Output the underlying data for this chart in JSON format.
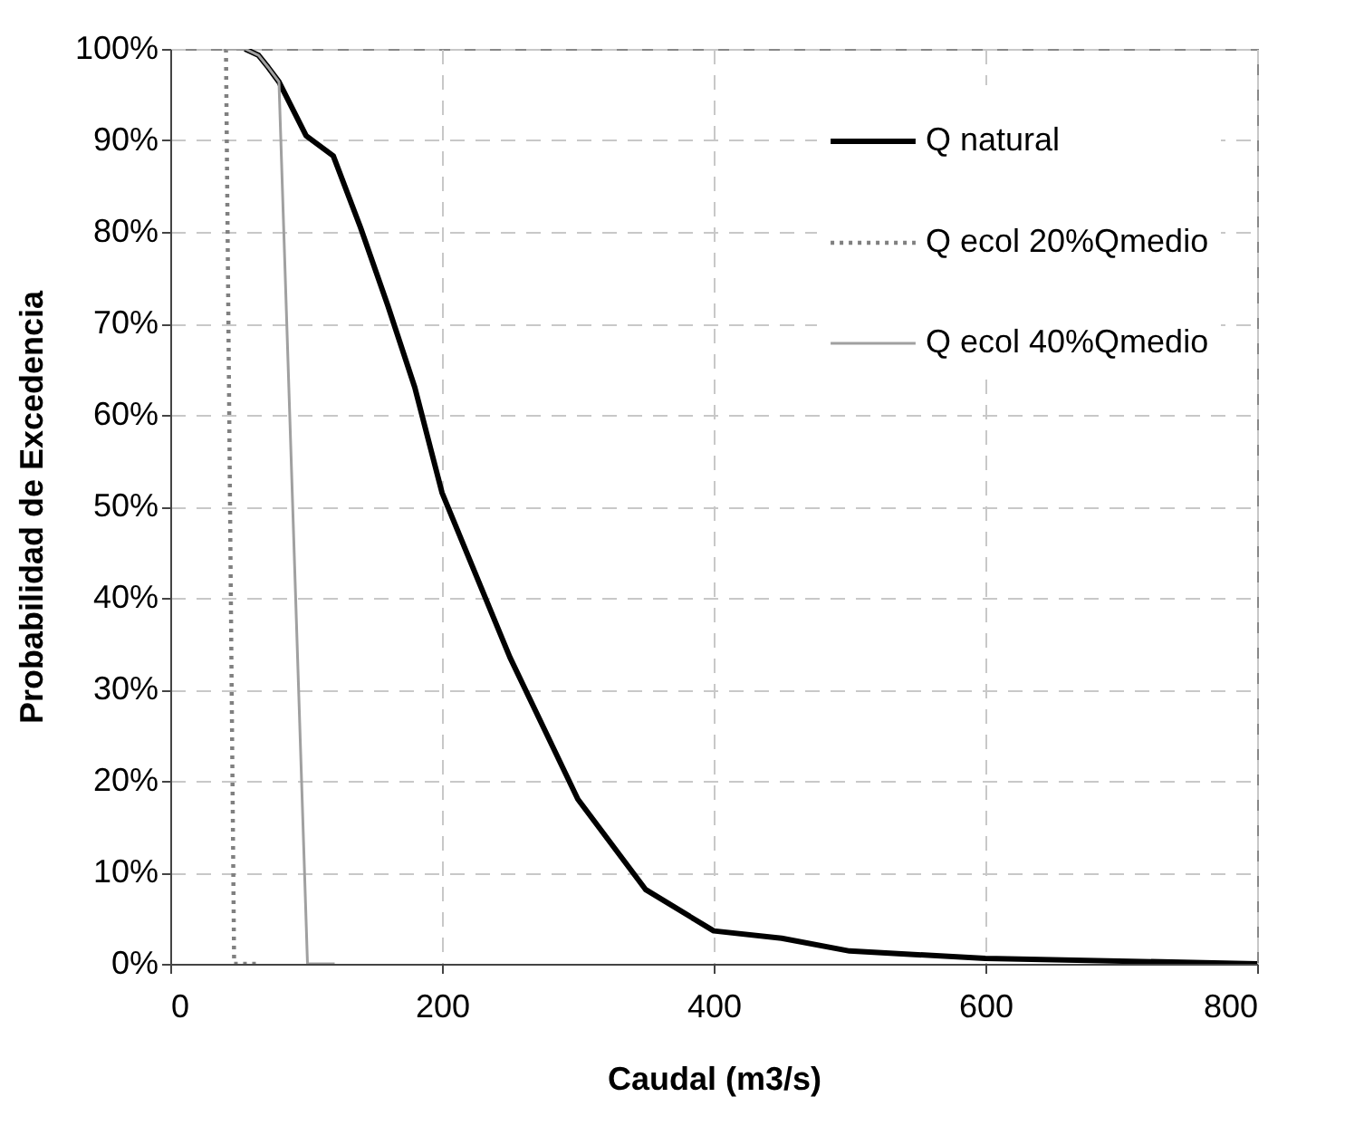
{
  "chart_data": {
    "type": "line",
    "xlabel": "Caudal (m3/s)",
    "ylabel": "Probabilidad de Excedencia",
    "xlim": [
      0,
      800
    ],
    "xticks": [
      0,
      200,
      400,
      600,
      800
    ],
    "ylim": [
      0,
      100
    ],
    "yticks": [
      {
        "value": 0,
        "label": "0%"
      },
      {
        "value": 10,
        "label": "10%"
      },
      {
        "value": 20,
        "label": "20%"
      },
      {
        "value": 30,
        "label": "30%"
      },
      {
        "value": 40,
        "label": "40%"
      },
      {
        "value": 50,
        "label": "50%"
      },
      {
        "value": 60,
        "label": "60%"
      },
      {
        "value": 70,
        "label": "70%"
      },
      {
        "value": 80,
        "label": "80%"
      },
      {
        "value": 90,
        "label": "90%"
      },
      {
        "value": 100,
        "label": "100%"
      }
    ],
    "grid": true,
    "legend": "top right",
    "marker": "none",
    "series": [
      {
        "name": "Q natural",
        "color": "#000000",
        "line_style": "solid",
        "x": [
          55,
          65,
          72,
          80,
          100,
          120,
          140,
          160,
          180,
          200,
          250,
          300,
          350,
          400,
          450,
          500,
          600,
          800
        ],
        "values": [
          100,
          99.3,
          98,
          96.4,
          90.5,
          88.3,
          80.5,
          72,
          63,
          51.5,
          33.5,
          18,
          8.1,
          3.6,
          2.8,
          1.4,
          0.6,
          0
        ]
      },
      {
        "name": "Q ecol 20%Qmedio",
        "color": "#808080",
        "line_style": "dotted",
        "x": [
          41,
          47,
          63
        ],
        "values": [
          100,
          0,
          0
        ]
      },
      {
        "name": "Q ecol 40%Qmedio",
        "color": "#a0a0a0",
        "line_style": "solid",
        "x": [
          41,
          55,
          65,
          72,
          80,
          101,
          121
        ],
        "values": [
          100,
          100,
          99.3,
          98,
          96.4,
          0,
          0
        ]
      }
    ]
  }
}
